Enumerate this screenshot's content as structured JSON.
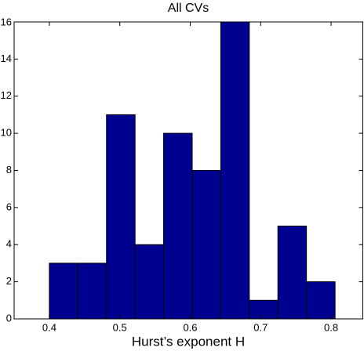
{
  "chart_data": {
    "type": "histogram",
    "title": "All CVs",
    "x_label": "Hurst’s exponent H",
    "bins": [
      0.4,
      0.4406,
      0.4811,
      0.5217,
      0.5622,
      0.6028,
      0.6433,
      0.6839,
      0.7244,
      0.765,
      0.8056
    ],
    "values": [
      3,
      3,
      11,
      4,
      10,
      8,
      16,
      1,
      5,
      2
    ],
    "color": "#000090",
    "xlim": [
      0.35,
      0.845
    ],
    "xticks": [
      0.4,
      0.5,
      0.6,
      0.7,
      0.8
    ],
    "ylim": [
      0,
      16
    ],
    "yticks": [
      0,
      2,
      4,
      6,
      8,
      10,
      12,
      14,
      16
    ]
  }
}
